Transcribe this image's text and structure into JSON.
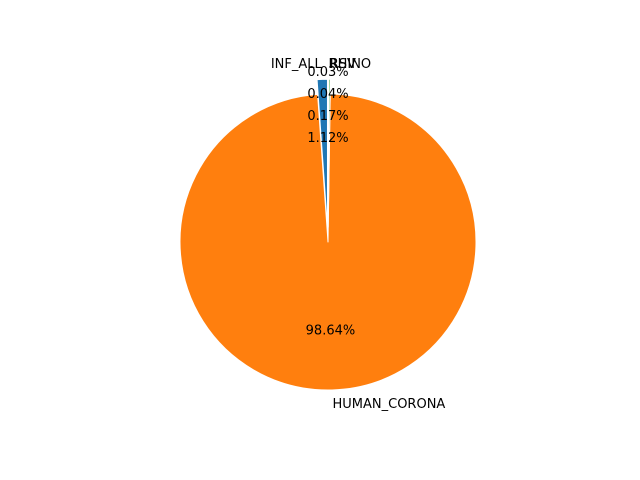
{
  "chart_data": {
    "type": "pie",
    "start_angle_deg": 90,
    "direction": "counterclockwise",
    "slices": [
      {
        "label": "INF_ALL",
        "value": 1.12,
        "pct_label": "1.12%",
        "color": "#1f77b4",
        "explode": true
      },
      {
        "label": "HUMAN_CORONA",
        "value": 98.64,
        "pct_label": "98.64%",
        "color": "#ff7f0e",
        "explode": false
      },
      {
        "label": "RSV",
        "value": 0.17,
        "pct_label": "0.17%",
        "color": "#2ca02c",
        "explode": true
      },
      {
        "label": "RHINO",
        "value": 0.04,
        "pct_label": "0.04%",
        "color": "#d62728",
        "explode": true
      },
      {
        "label": "",
        "value": 0.03,
        "pct_label": "0.03%",
        "color": "#9467bd",
        "explode": true
      }
    ]
  }
}
